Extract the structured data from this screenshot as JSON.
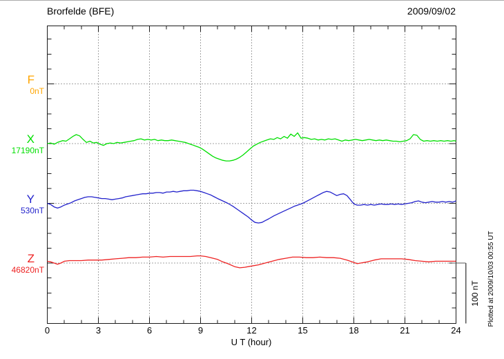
{
  "chart_data": {
    "type": "line",
    "station": "Brorfelde (BFE)",
    "date": "2009/09/02",
    "xlabel": "U T (hour)",
    "x_range_hours": [
      0,
      24
    ],
    "x_ticks": [
      0,
      3,
      6,
      9,
      12,
      15,
      18,
      21,
      24
    ],
    "x_minor_tick_hours": 1,
    "x_major_tick_hours": 3,
    "grid": "dotted vertical lines at 3-hour marks, dotted horizontal line at each channel baseline",
    "y_minor_tick_nT": 25,
    "channel_spacing_nT": 100,
    "scale_bar": {
      "label": "100 nT",
      "nT": 100
    },
    "plotted_note": "Plotted at 2009/10/03 00:55 UT",
    "channels": [
      {
        "id": "F",
        "label": "F",
        "baseline_label": "0nT",
        "baseline_nT": 0,
        "color": "#FFA500",
        "points": []
      },
      {
        "id": "X",
        "label": "X",
        "baseline_label": "17190nT",
        "baseline_nT": 17190,
        "color": "#00DF00",
        "points": [
          [
            0,
            0
          ],
          [
            0.2,
            1
          ],
          [
            0.4,
            -1
          ],
          [
            0.6,
            2
          ],
          [
            0.9,
            5
          ],
          [
            1.1,
            4
          ],
          [
            1.3,
            8
          ],
          [
            1.5,
            12
          ],
          [
            1.7,
            15
          ],
          [
            1.9,
            13
          ],
          [
            2.1,
            7
          ],
          [
            2.3,
            2
          ],
          [
            2.5,
            4
          ],
          [
            2.7,
            1
          ],
          [
            2.9,
            2
          ],
          [
            3.1,
            -1
          ],
          [
            3.3,
            -3
          ],
          [
            3.5,
            0
          ],
          [
            3.7,
            1
          ],
          [
            3.9,
            0
          ],
          [
            4.1,
            2
          ],
          [
            4.3,
            1
          ],
          [
            4.5,
            2
          ],
          [
            4.7,
            3
          ],
          [
            4.9,
            4
          ],
          [
            5.1,
            5
          ],
          [
            5.3,
            7
          ],
          [
            5.5,
            8
          ],
          [
            5.7,
            6
          ],
          [
            5.9,
            7
          ],
          [
            6.1,
            6
          ],
          [
            6.3,
            7
          ],
          [
            6.5,
            5
          ],
          [
            6.7,
            6
          ],
          [
            6.9,
            5
          ],
          [
            7.1,
            5
          ],
          [
            7.3,
            6
          ],
          [
            7.5,
            5
          ],
          [
            7.7,
            4
          ],
          [
            7.9,
            3
          ],
          [
            8.1,
            2
          ],
          [
            8.3,
            0
          ],
          [
            8.5,
            -2
          ],
          [
            8.7,
            -4
          ],
          [
            8.9,
            -6
          ],
          [
            9.1,
            -9
          ],
          [
            9.3,
            -13
          ],
          [
            9.5,
            -17
          ],
          [
            9.7,
            -21
          ],
          [
            9.9,
            -24
          ],
          [
            10.1,
            -26
          ],
          [
            10.3,
            -28
          ],
          [
            10.5,
            -29
          ],
          [
            10.7,
            -29
          ],
          [
            10.9,
            -28
          ],
          [
            11.1,
            -26
          ],
          [
            11.3,
            -23
          ],
          [
            11.5,
            -19
          ],
          [
            11.7,
            -14
          ],
          [
            11.9,
            -9
          ],
          [
            12.1,
            -4
          ],
          [
            12.3,
            -1
          ],
          [
            12.5,
            2
          ],
          [
            12.7,
            4
          ],
          [
            12.9,
            6
          ],
          [
            13.1,
            8
          ],
          [
            13.3,
            7
          ],
          [
            13.5,
            10
          ],
          [
            13.7,
            8
          ],
          [
            13.9,
            12
          ],
          [
            14.1,
            9
          ],
          [
            14.3,
            16
          ],
          [
            14.5,
            12
          ],
          [
            14.7,
            18
          ],
          [
            14.9,
            9
          ],
          [
            15.1,
            10
          ],
          [
            15.3,
            9
          ],
          [
            15.5,
            7
          ],
          [
            15.7,
            8
          ],
          [
            15.9,
            6
          ],
          [
            16.1,
            7
          ],
          [
            16.3,
            6
          ],
          [
            16.5,
            8
          ],
          [
            16.7,
            7
          ],
          [
            16.9,
            8
          ],
          [
            17.1,
            6
          ],
          [
            17.3,
            4
          ],
          [
            17.5,
            6
          ],
          [
            17.7,
            5
          ],
          [
            17.9,
            6
          ],
          [
            18.1,
            7
          ],
          [
            18.3,
            6
          ],
          [
            18.5,
            5
          ],
          [
            18.7,
            6
          ],
          [
            18.9,
            7
          ],
          [
            19.1,
            6
          ],
          [
            19.3,
            5
          ],
          [
            19.5,
            6
          ],
          [
            19.7,
            5
          ],
          [
            19.9,
            6
          ],
          [
            20.1,
            5
          ],
          [
            20.3,
            4
          ],
          [
            20.5,
            4
          ],
          [
            20.7,
            3
          ],
          [
            20.9,
            4
          ],
          [
            21.1,
            5
          ],
          [
            21.3,
            8
          ],
          [
            21.5,
            15
          ],
          [
            21.7,
            14
          ],
          [
            21.9,
            7
          ],
          [
            22.1,
            4
          ],
          [
            22.3,
            5
          ],
          [
            22.5,
            4
          ],
          [
            22.7,
            5
          ],
          [
            22.9,
            4
          ],
          [
            23.1,
            5
          ],
          [
            23.3,
            4
          ],
          [
            23.5,
            5
          ],
          [
            23.7,
            4
          ],
          [
            23.9,
            5
          ],
          [
            24,
            4
          ]
        ]
      },
      {
        "id": "Y",
        "label": "Y",
        "baseline_label": "530nT",
        "baseline_nT": 530,
        "color": "#2222CC",
        "points": [
          [
            0,
            0
          ],
          [
            0.2,
            -2
          ],
          [
            0.4,
            -6
          ],
          [
            0.6,
            -8
          ],
          [
            0.8,
            -6
          ],
          [
            1.0,
            -3
          ],
          [
            1.2,
            -1
          ],
          [
            1.4,
            1
          ],
          [
            1.6,
            4
          ],
          [
            1.8,
            6
          ],
          [
            2.0,
            8
          ],
          [
            2.2,
            10
          ],
          [
            2.4,
            11
          ],
          [
            2.6,
            11
          ],
          [
            2.8,
            10
          ],
          [
            3.0,
            9
          ],
          [
            3.2,
            8
          ],
          [
            3.4,
            8
          ],
          [
            3.6,
            7
          ],
          [
            3.8,
            6
          ],
          [
            4.0,
            7
          ],
          [
            4.2,
            8
          ],
          [
            4.4,
            9
          ],
          [
            4.6,
            11
          ],
          [
            4.8,
            12
          ],
          [
            5.0,
            13
          ],
          [
            5.2,
            14
          ],
          [
            5.4,
            15
          ],
          [
            5.6,
            16
          ],
          [
            5.8,
            16
          ],
          [
            6.0,
            17
          ],
          [
            6.2,
            17
          ],
          [
            6.4,
            18
          ],
          [
            6.6,
            18
          ],
          [
            6.8,
            17
          ],
          [
            7.0,
            19
          ],
          [
            7.2,
            19
          ],
          [
            7.4,
            20
          ],
          [
            7.6,
            19
          ],
          [
            7.8,
            20
          ],
          [
            8.0,
            21
          ],
          [
            8.2,
            21
          ],
          [
            8.4,
            22
          ],
          [
            8.6,
            22
          ],
          [
            8.8,
            21
          ],
          [
            9.0,
            20
          ],
          [
            9.2,
            18
          ],
          [
            9.4,
            16
          ],
          [
            9.6,
            14
          ],
          [
            9.8,
            11
          ],
          [
            10.0,
            8
          ],
          [
            10.3,
            4
          ],
          [
            10.6,
            0
          ],
          [
            10.9,
            -5
          ],
          [
            11.2,
            -11
          ],
          [
            11.5,
            -17
          ],
          [
            11.8,
            -23
          ],
          [
            12.0,
            -28
          ],
          [
            12.2,
            -32
          ],
          [
            12.4,
            -33
          ],
          [
            12.6,
            -32
          ],
          [
            12.8,
            -29
          ],
          [
            13.0,
            -26
          ],
          [
            13.3,
            -21
          ],
          [
            13.6,
            -17
          ],
          [
            13.9,
            -13
          ],
          [
            14.2,
            -9
          ],
          [
            14.5,
            -5
          ],
          [
            14.8,
            -2
          ],
          [
            15.0,
            0
          ],
          [
            15.2,
            3
          ],
          [
            15.4,
            6
          ],
          [
            15.6,
            9
          ],
          [
            15.8,
            12
          ],
          [
            16.0,
            15
          ],
          [
            16.2,
            18
          ],
          [
            16.4,
            20
          ],
          [
            16.6,
            19
          ],
          [
            16.8,
            16
          ],
          [
            17.0,
            13
          ],
          [
            17.2,
            15
          ],
          [
            17.4,
            16
          ],
          [
            17.6,
            13
          ],
          [
            17.8,
            6
          ],
          [
            18.0,
            -1
          ],
          [
            18.2,
            -3
          ],
          [
            18.4,
            -3
          ],
          [
            18.6,
            -2
          ],
          [
            18.8,
            -3
          ],
          [
            19.0,
            -2
          ],
          [
            19.2,
            -3
          ],
          [
            19.4,
            -2
          ],
          [
            19.6,
            -1
          ],
          [
            19.8,
            -2
          ],
          [
            20.0,
            -2
          ],
          [
            20.2,
            -1
          ],
          [
            20.4,
            -2
          ],
          [
            20.6,
            -1
          ],
          [
            20.8,
            -2
          ],
          [
            21.0,
            -1
          ],
          [
            21.2,
            0
          ],
          [
            21.4,
            1
          ],
          [
            21.6,
            3
          ],
          [
            21.8,
            4
          ],
          [
            22.0,
            2
          ],
          [
            22.2,
            1
          ],
          [
            22.4,
            2
          ],
          [
            22.6,
            3
          ],
          [
            22.8,
            2
          ],
          [
            23.0,
            2
          ],
          [
            23.2,
            3
          ],
          [
            23.4,
            2
          ],
          [
            23.6,
            3
          ],
          [
            23.8,
            2
          ],
          [
            24,
            4
          ]
        ]
      },
      {
        "id": "Z",
        "label": "Z",
        "baseline_label": "46820nT",
        "baseline_nT": 46820,
        "color": "#EE2222",
        "points": [
          [
            0,
            3
          ],
          [
            0.2,
            2
          ],
          [
            0.4,
            0
          ],
          [
            0.6,
            -2
          ],
          [
            0.8,
            0
          ],
          [
            1.0,
            3
          ],
          [
            1.3,
            4
          ],
          [
            1.6,
            4
          ],
          [
            2.0,
            4
          ],
          [
            2.4,
            5
          ],
          [
            2.8,
            5
          ],
          [
            3.2,
            5
          ],
          [
            3.6,
            6
          ],
          [
            4.0,
            7
          ],
          [
            4.4,
            8
          ],
          [
            4.8,
            9
          ],
          [
            5.2,
            9
          ],
          [
            5.6,
            10
          ],
          [
            6.0,
            10
          ],
          [
            6.4,
            11
          ],
          [
            6.8,
            10
          ],
          [
            7.2,
            11
          ],
          [
            7.6,
            11
          ],
          [
            8.0,
            11
          ],
          [
            8.4,
            11
          ],
          [
            8.8,
            12
          ],
          [
            9.0,
            12
          ],
          [
            9.3,
            11
          ],
          [
            9.6,
            9
          ],
          [
            10.0,
            6
          ],
          [
            10.3,
            2
          ],
          [
            10.6,
            -1
          ],
          [
            11.0,
            -6
          ],
          [
            11.3,
            -8
          ],
          [
            11.6,
            -7
          ],
          [
            12.0,
            -5
          ],
          [
            12.4,
            -3
          ],
          [
            12.8,
            0
          ],
          [
            13.2,
            3
          ],
          [
            13.6,
            6
          ],
          [
            14.0,
            8
          ],
          [
            14.4,
            10
          ],
          [
            14.8,
            10
          ],
          [
            15.2,
            9
          ],
          [
            15.6,
            9
          ],
          [
            16.0,
            10
          ],
          [
            16.4,
            9
          ],
          [
            16.8,
            9
          ],
          [
            17.2,
            8
          ],
          [
            17.6,
            5
          ],
          [
            18.0,
            1
          ],
          [
            18.2,
            -1
          ],
          [
            18.4,
            0
          ],
          [
            18.8,
            2
          ],
          [
            19.2,
            5
          ],
          [
            19.6,
            7
          ],
          [
            20.0,
            7
          ],
          [
            20.4,
            7
          ],
          [
            20.8,
            7
          ],
          [
            21.2,
            6
          ],
          [
            21.6,
            4
          ],
          [
            22.0,
            3
          ],
          [
            22.4,
            2
          ],
          [
            22.8,
            3
          ],
          [
            23.2,
            3
          ],
          [
            23.6,
            3
          ],
          [
            24,
            3
          ]
        ]
      }
    ]
  }
}
